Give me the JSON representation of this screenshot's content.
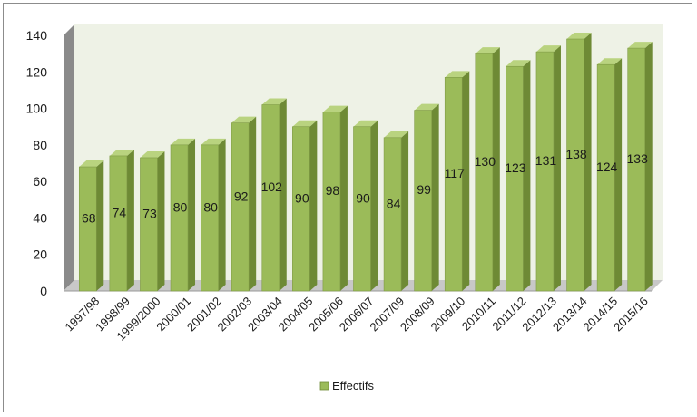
{
  "chart_data": {
    "type": "bar",
    "categories": [
      "1997/98",
      "1998/99",
      "1999/2000",
      "2000/01",
      "2001/02",
      "2002/03",
      "2003/04",
      "2004/05",
      "2005/06",
      "2006/07",
      "2007/09",
      "2008/09",
      "2009/10",
      "2010/11",
      "2011/12",
      "2012/13",
      "2013/14",
      "2014/15",
      "2015/16"
    ],
    "series": [
      {
        "name": "Effectifs",
        "values": [
          68,
          74,
          73,
          80,
          80,
          92,
          102,
          90,
          98,
          90,
          84,
          99,
          117,
          130,
          123,
          131,
          138,
          124,
          133
        ]
      }
    ],
    "ylim": [
      0,
      140
    ],
    "yticks": [
      0,
      20,
      40,
      60,
      80,
      100,
      120,
      140
    ],
    "grid": false,
    "legend": "bottom",
    "style": "3d-column",
    "colors": {
      "bar_front": "#9bbb59",
      "bar_side": "#6e8a35",
      "bar_top": "#b9d37f",
      "backwall": "#eef2e6",
      "floor": "#c8c8c8"
    }
  }
}
